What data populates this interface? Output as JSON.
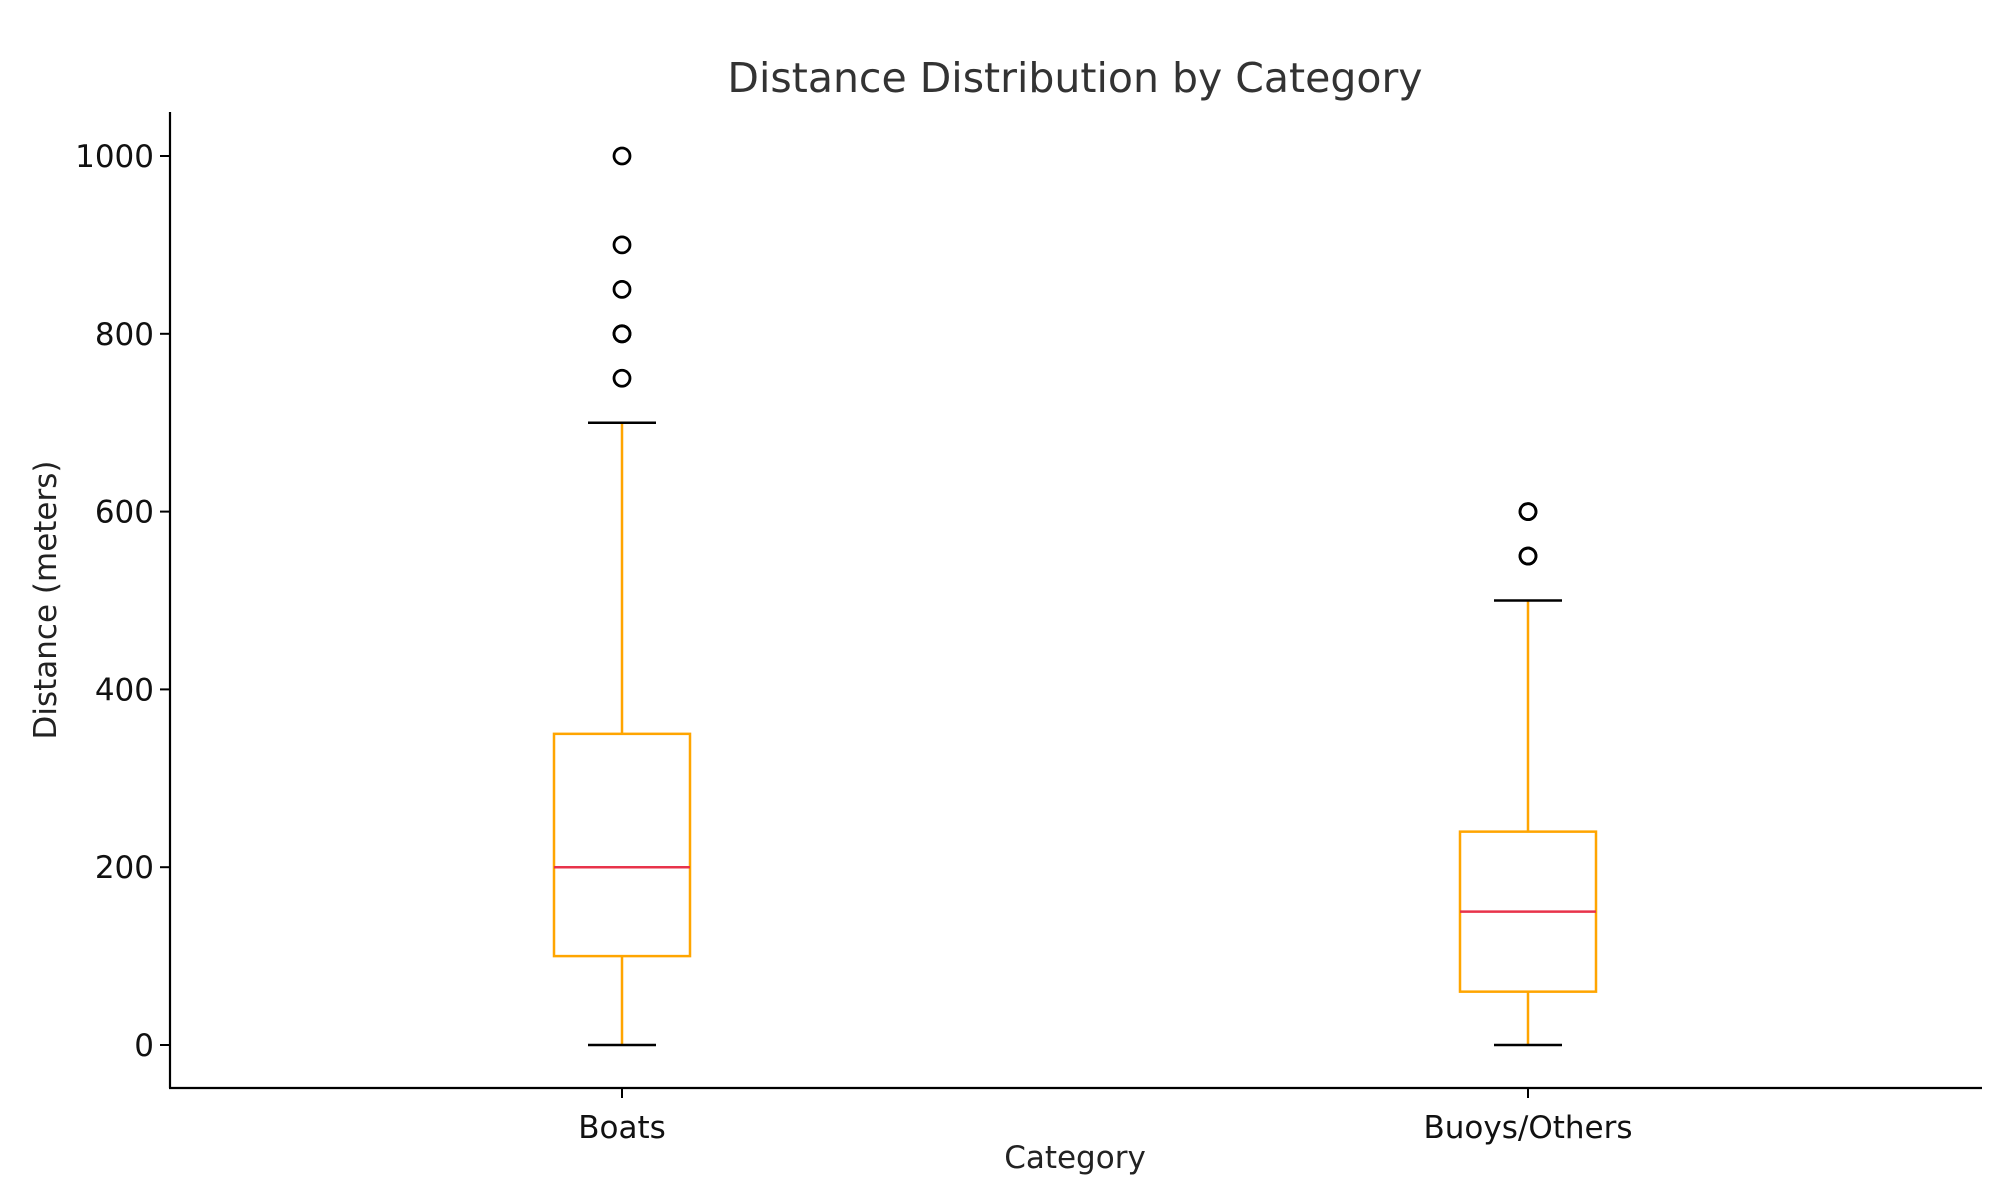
{
  "chart_data": {
    "type": "box",
    "title": "Distance Distribution by Category",
    "xlabel": "Category",
    "ylabel": "Distance (meters)",
    "ylim": [
      -50,
      1050
    ],
    "yticks": [
      0,
      200,
      400,
      600,
      800,
      1000
    ],
    "grid": false,
    "categories": [
      "Boats",
      "Buoys/Others"
    ],
    "boxes": [
      {
        "category": "Boats",
        "whisker_low": 0,
        "q1": 100,
        "median": 200,
        "q3": 350,
        "whisker_high": 700,
        "outliers": [
          750,
          800,
          800,
          850,
          900,
          1000
        ]
      },
      {
        "category": "Buoys/Others",
        "whisker_low": 0,
        "q1": 60,
        "median": 150,
        "q3": 240,
        "whisker_high": 500,
        "outliers": [
          550,
          550,
          600,
          600
        ]
      }
    ],
    "colors": {
      "box": "#FFA500",
      "median": "#E8334A",
      "caps": "#000000",
      "fliers": "#000000"
    }
  }
}
